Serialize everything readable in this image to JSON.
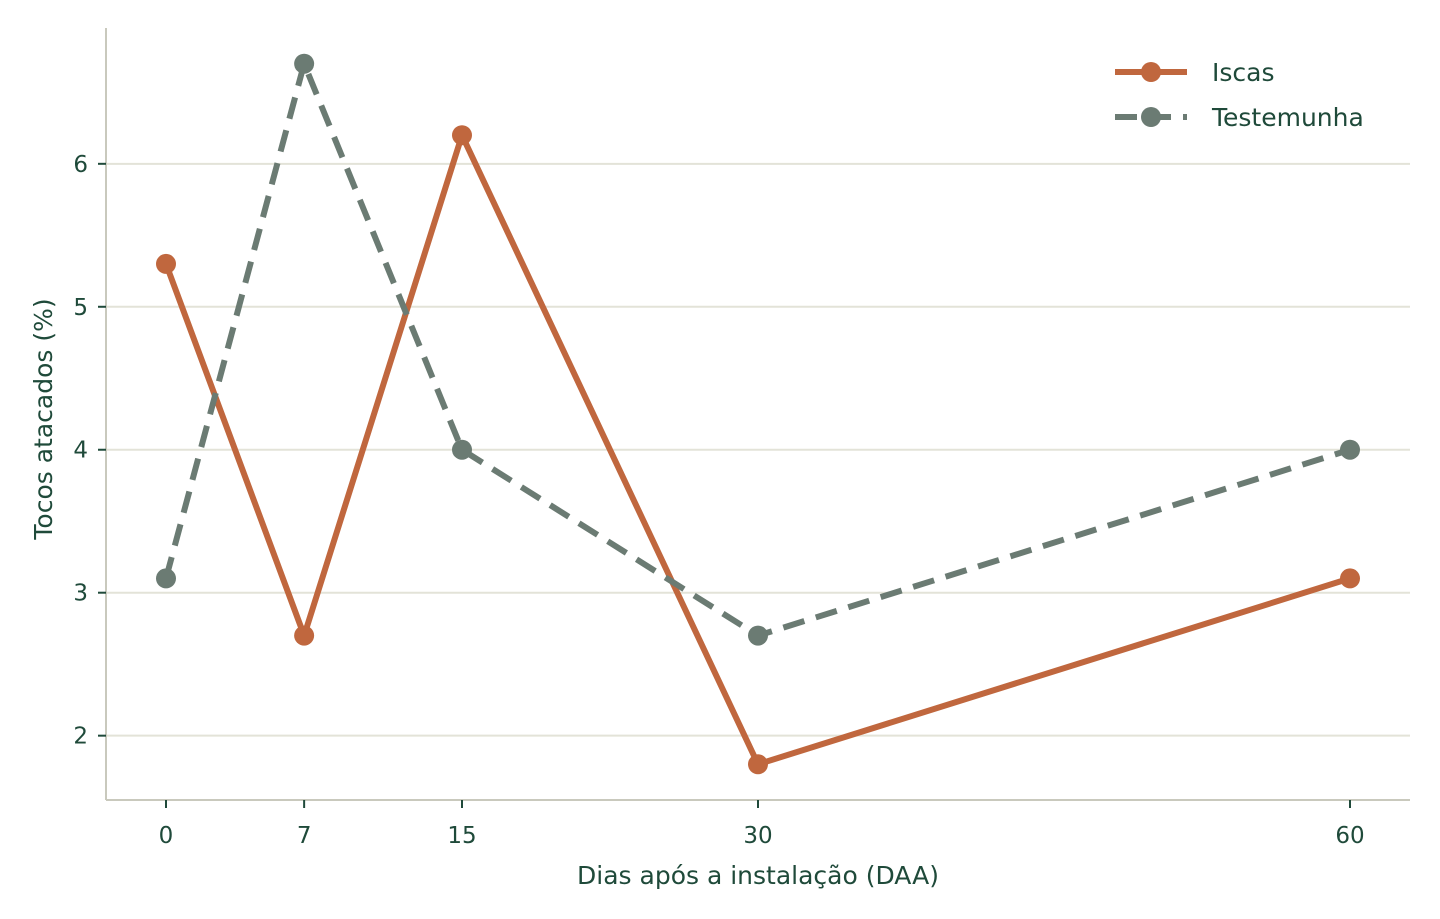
{
  "chart_data": {
    "type": "line",
    "title": "",
    "xlabel": "Dias após a instalação (DAA)",
    "ylabel": "Tocos atacados (%)",
    "x": [
      0,
      7,
      15,
      30,
      60
    ],
    "x_tick_labels": [
      "0",
      "7",
      "15",
      "30",
      "60"
    ],
    "y_ticks": [
      2,
      3,
      4,
      5,
      6
    ],
    "y_tick_labels": [
      "2",
      "3",
      "4",
      "5",
      "6"
    ],
    "xlim": [
      -3,
      63
    ],
    "ylim": [
      1.55,
      6.95
    ],
    "grid": "horizontal",
    "legend_position": "top-right",
    "series": [
      {
        "name": "Iscas",
        "values": [
          5.3,
          2.7,
          6.2,
          1.8,
          3.1
        ],
        "color": "#c0673e",
        "style": "solid"
      },
      {
        "name": "Testemunha",
        "values": [
          3.1,
          6.7,
          4.0,
          2.7,
          4.0
        ],
        "color": "#6b7b73",
        "style": "dashed"
      }
    ]
  }
}
